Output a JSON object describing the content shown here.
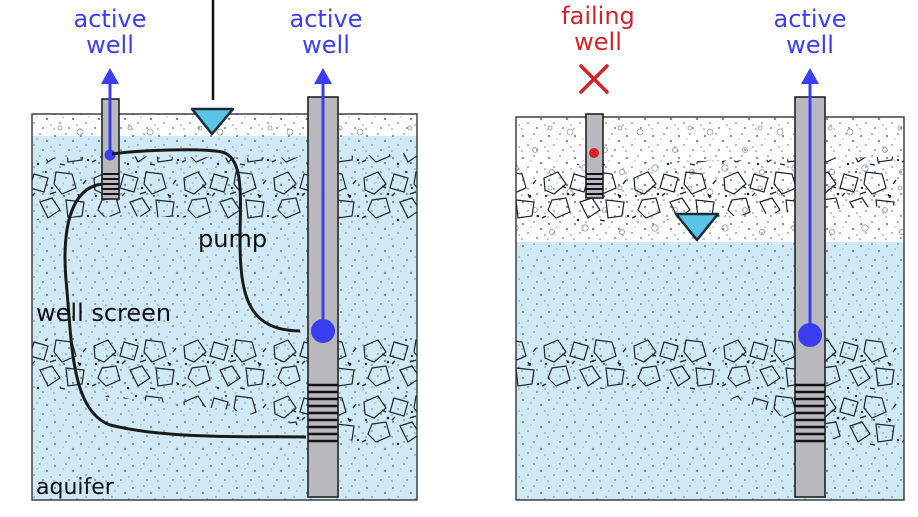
{
  "left_panel": {
    "well_small_label_line1": "active",
    "well_small_label_line2": "well",
    "well_large_label_line1": "active",
    "well_large_label_line2": "well",
    "pump_label": "pump",
    "screen_label": "well screen",
    "aquifer_label": "aquifer"
  },
  "right_panel": {
    "well_small_label_line1": "failing",
    "well_small_label_line2": "well",
    "well_large_label_line1": "active",
    "well_large_label_line2": "well"
  },
  "colors": {
    "active": "#3a3ef0",
    "failing": "#d2232a",
    "water": "#cfe9f5",
    "water_table": "#5bc4e6",
    "casing": "#b9b9bd"
  }
}
